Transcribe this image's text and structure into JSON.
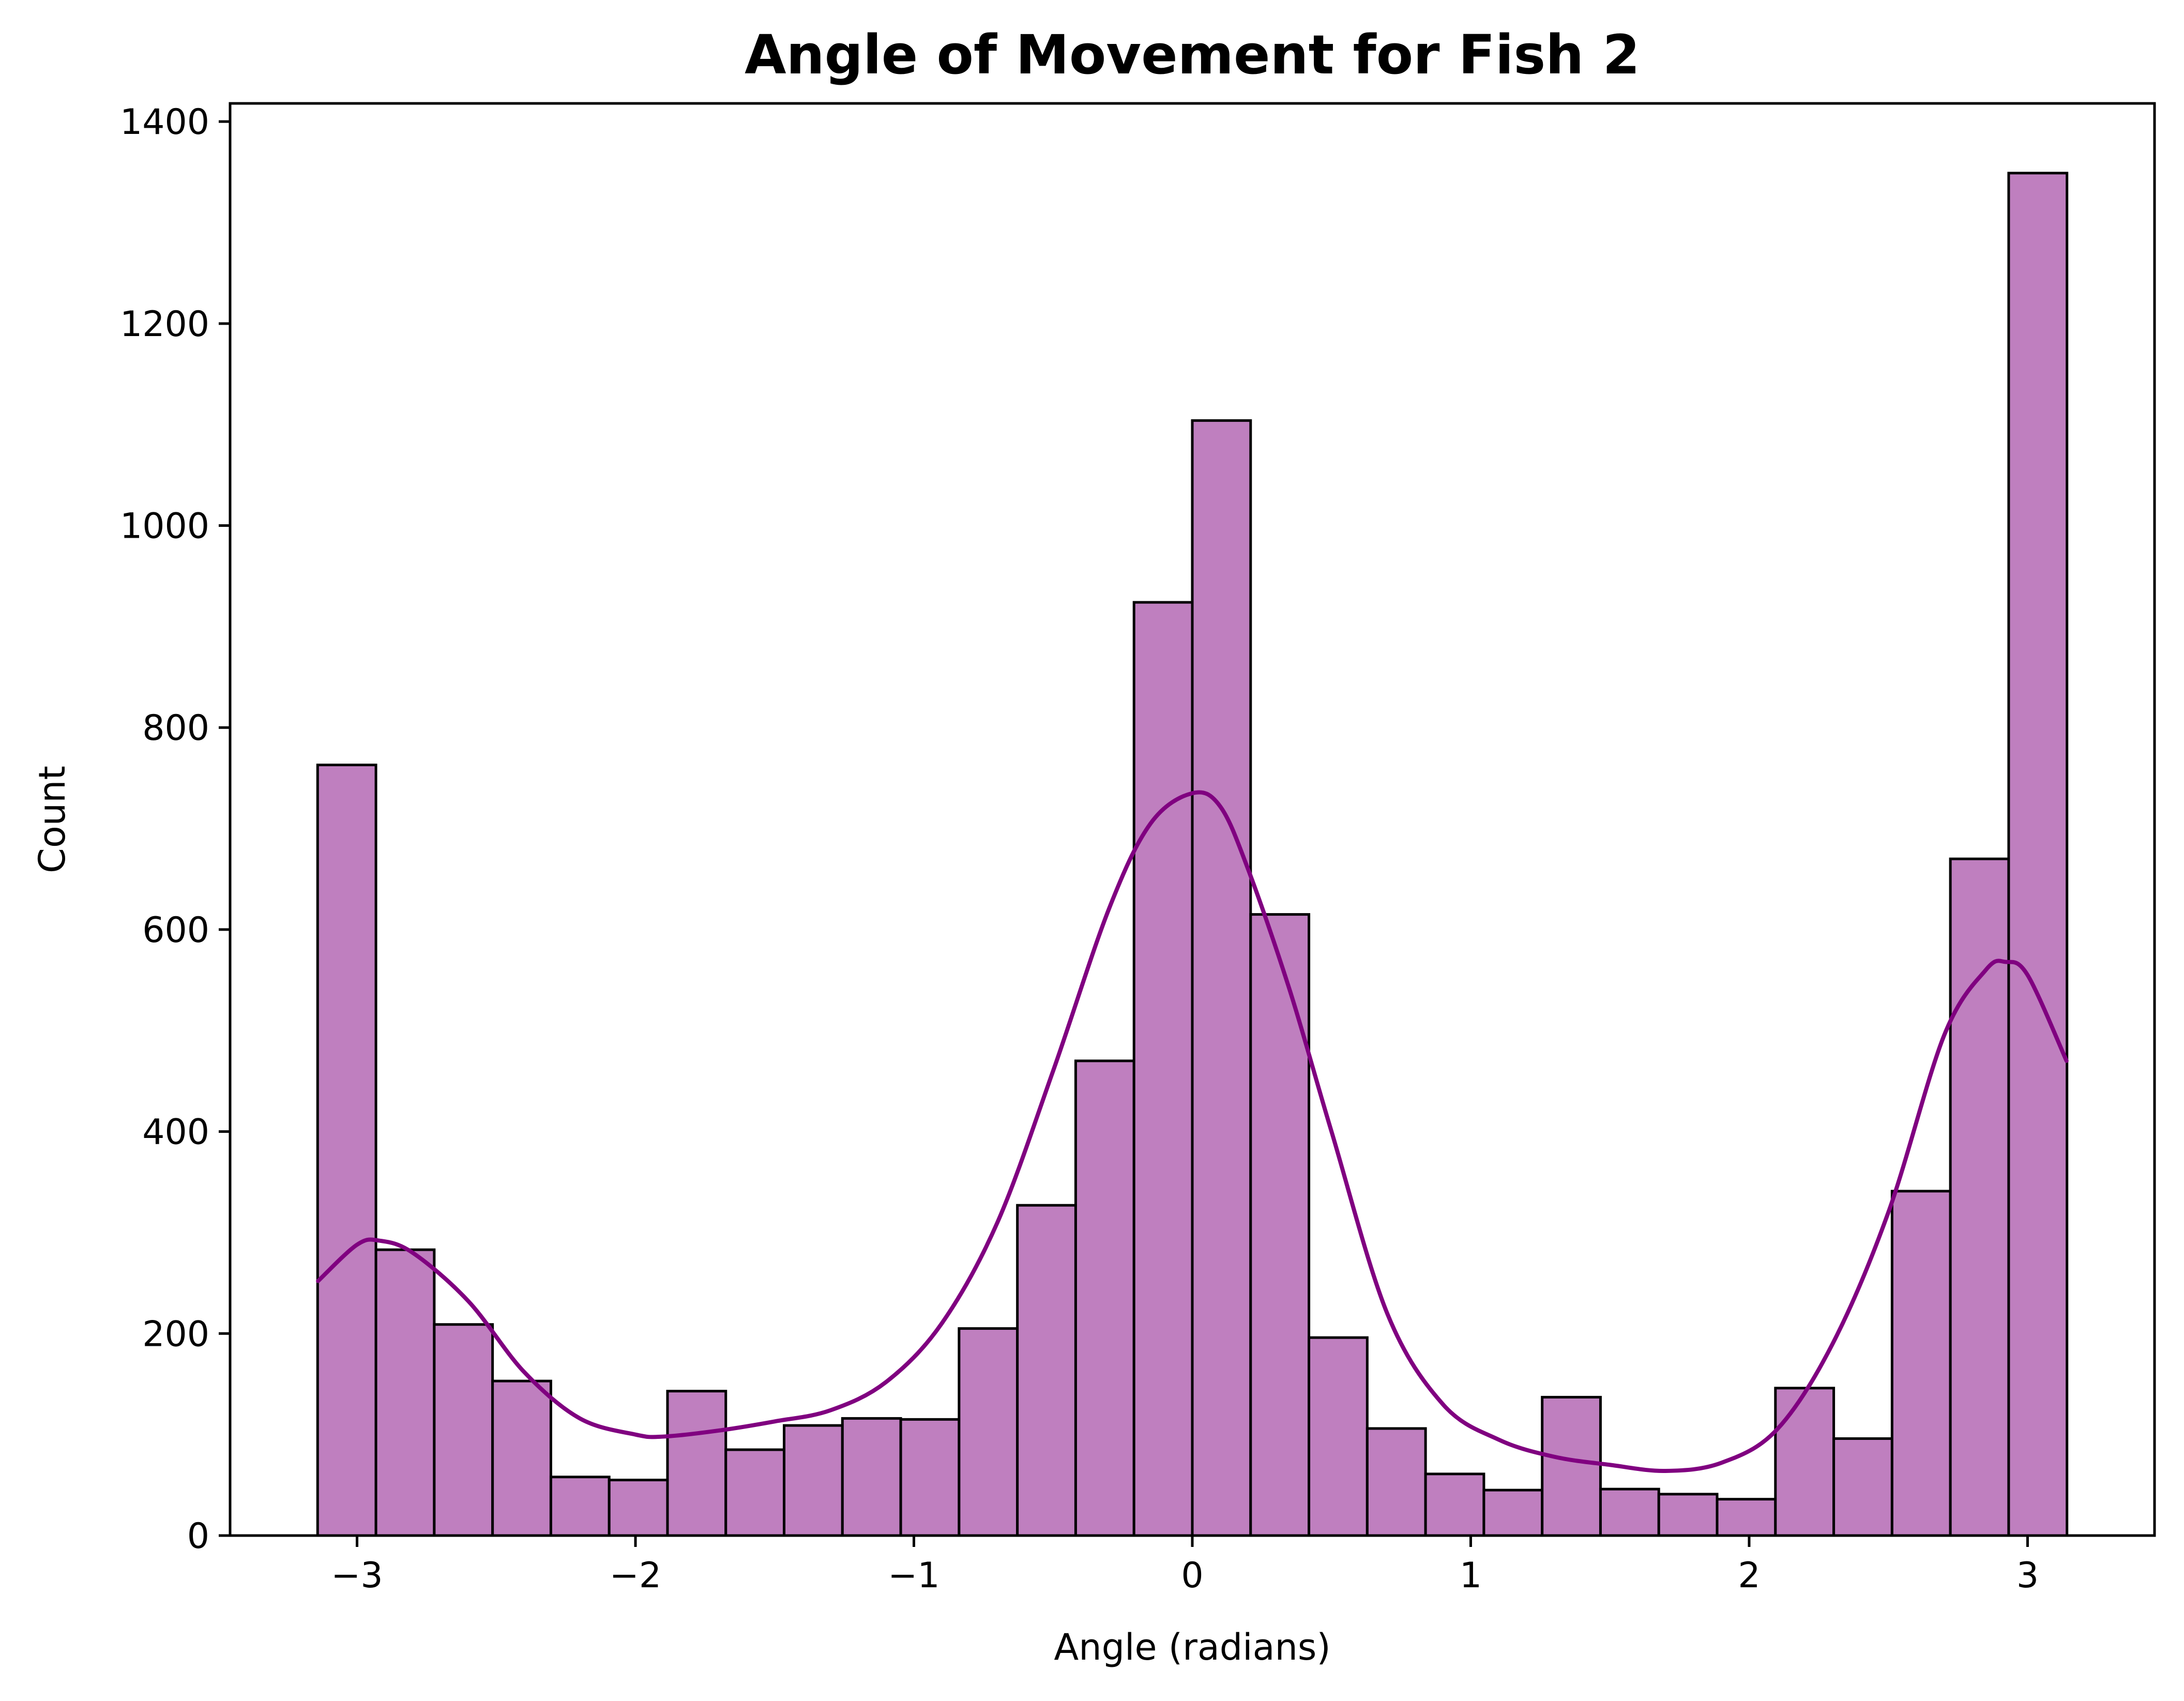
{
  "chart_data": {
    "type": "bar",
    "title": "Angle of Movement for Fish 2",
    "xlabel": "Angle (radians)",
    "ylabel": "Count",
    "xlim": [
      -3.456,
      3.456
    ],
    "ylim": [
      0,
      1418
    ],
    "x_ticks": [
      -3,
      -2,
      -1,
      0,
      1,
      2,
      3
    ],
    "x_tick_labels": [
      "−3",
      "−2",
      "−1",
      "0",
      "1",
      "2",
      "3"
    ],
    "y_ticks": [
      0,
      200,
      400,
      600,
      800,
      1000,
      1200,
      1400
    ],
    "y_tick_labels": [
      "0",
      "200",
      "400",
      "600",
      "800",
      "1000",
      "1200",
      "1400"
    ],
    "grid": false,
    "legend": "none",
    "bins": {
      "start": -3.1416,
      "end": 3.1416,
      "count": 30,
      "values": [
        763,
        283,
        209,
        153,
        58,
        55,
        143,
        85,
        109,
        116,
        115,
        205,
        327,
        470,
        924,
        1104,
        615,
        196,
        106,
        61,
        45,
        137,
        46,
        41,
        36,
        146,
        96,
        341,
        670,
        1349
      ]
    },
    "kde_curve": {
      "x": [
        -3.14,
        -3.0,
        -2.92,
        -2.8,
        -2.6,
        -2.4,
        -2.2,
        -2.0,
        -1.9,
        -1.7,
        -1.5,
        -1.3,
        -1.1,
        -0.9,
        -0.7,
        -0.5,
        -0.3,
        -0.15,
        0.0,
        0.1,
        0.2,
        0.35,
        0.5,
        0.7,
        0.9,
        1.1,
        1.3,
        1.5,
        1.7,
        1.9,
        2.1,
        2.3,
        2.5,
        2.7,
        2.85,
        2.92,
        3.0,
        3.14
      ],
      "y": [
        252,
        288,
        292,
        280,
        232,
        162,
        116,
        100,
        98,
        104,
        113,
        124,
        152,
        210,
        310,
        460,
        620,
        705,
        735,
        722,
        660,
        540,
        400,
        220,
        130,
        95,
        78,
        70,
        64,
        72,
        105,
        190,
        320,
        495,
        560,
        568,
        555,
        470
      ]
    },
    "colors": {
      "bar_fill": "#bf7fbf",
      "bar_edge": "#000000",
      "kde_line": "#800080",
      "axes": "#000000"
    }
  }
}
